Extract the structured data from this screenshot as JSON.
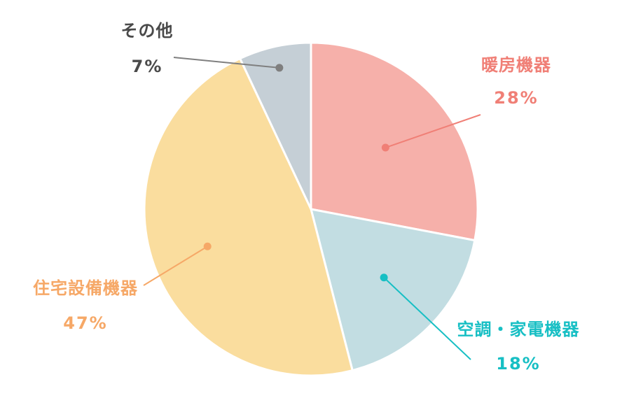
{
  "chart_data": {
    "type": "pie",
    "title": "",
    "unit": "%",
    "slices": [
      {
        "label": "暖房機器",
        "value": 28,
        "value_label": "28%",
        "color": "#F6B0AA",
        "label_color": "#F07F76",
        "leader_color": "#F07F76"
      },
      {
        "label": "空調・家電機器",
        "value": 18,
        "value_label": "18%",
        "color": "#C2DDE2",
        "label_color": "#17BFC4",
        "leader_color": "#17BFC4"
      },
      {
        "label": "住宅設備機器",
        "value": 47,
        "value_label": "47%",
        "color": "#FADD9E",
        "label_color": "#F6A867",
        "leader_color": "#F6A867"
      },
      {
        "label": "その他",
        "value": 7,
        "value_label": "7%",
        "color": "#C5CFD6",
        "label_color": "#4A4A4A",
        "leader_color": "#7F7F7F"
      }
    ],
    "start": "12 o'clock",
    "direction": "clockwise",
    "legend": "none"
  }
}
